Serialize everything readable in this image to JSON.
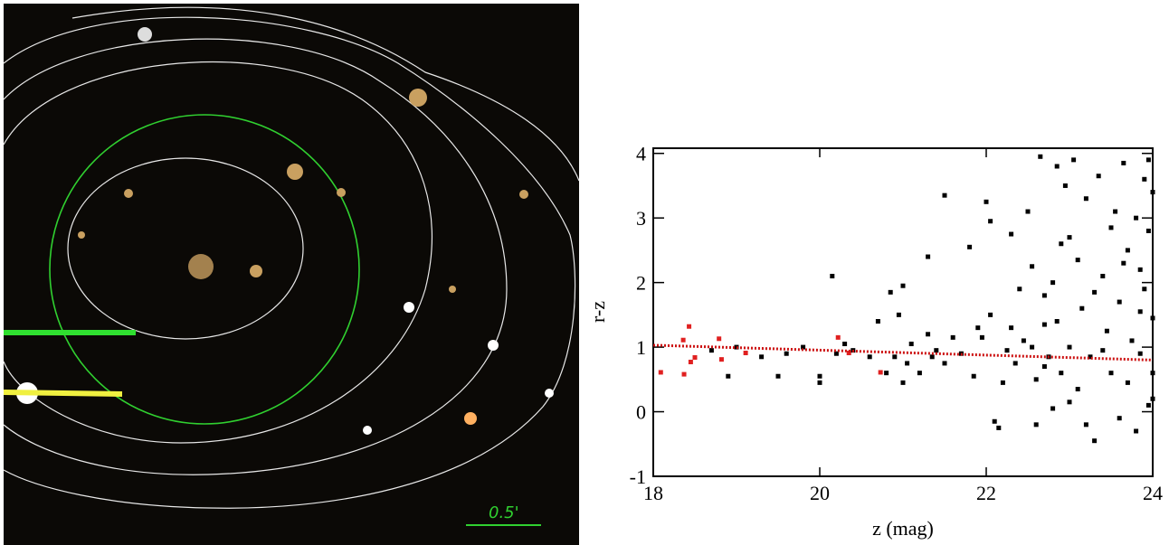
{
  "chart_data": [
    {
      "type": "image",
      "annotations": [
        "0.5'"
      ]
    },
    {
      "type": "scatter",
      "xlabel": "z (mag)",
      "ylabel": "r-z",
      "xlim": [
        18,
        24
      ],
      "ylim": [
        -1,
        4.08
      ],
      "xticks": [
        18,
        20,
        22,
        24
      ],
      "yticks": [
        -1,
        0,
        1,
        2,
        3,
        4
      ],
      "series": [
        {
          "type": "scatter",
          "color": "#000000",
          "x": [
            18.7,
            18.9,
            19.0,
            19.3,
            19.5,
            19.6,
            19.8,
            20.0,
            20.0,
            20.15,
            20.2,
            20.3,
            20.4,
            20.6,
            20.7,
            20.8,
            20.85,
            20.9,
            20.95,
            21.0,
            21.0,
            21.05,
            21.1,
            21.2,
            21.3,
            21.3,
            21.35,
            21.5,
            21.5,
            21.6,
            21.7,
            21.8,
            21.85,
            21.9,
            22.0,
            22.05,
            22.05,
            22.1,
            22.15,
            22.2,
            22.25,
            22.3,
            22.35,
            22.4,
            22.45,
            22.5,
            22.55,
            22.55,
            22.6,
            22.6,
            22.65,
            22.7,
            22.7,
            22.75,
            22.8,
            22.8,
            22.85,
            22.85,
            22.9,
            22.95,
            23.0,
            23.0,
            23.05,
            23.1,
            23.1,
            23.15,
            23.2,
            23.2,
            23.25,
            23.3,
            23.3,
            23.35,
            23.4,
            23.45,
            23.5,
            23.5,
            23.55,
            23.6,
            23.6,
            23.65,
            23.7,
            23.7,
            23.75,
            23.8,
            23.8,
            23.85,
            23.85,
            23.9,
            23.9,
            23.95,
            23.95,
            23.95,
            24.0,
            24.0,
            24.0,
            23.4,
            23.0,
            22.9,
            22.3,
            21.95,
            21.4,
            23.65,
            23.85,
            24.0,
            22.7
          ],
          "values": [
            0.95,
            0.55,
            1.0,
            0.85,
            0.55,
            0.9,
            1.0,
            0.55,
            0.45,
            2.1,
            0.9,
            1.05,
            0.95,
            0.85,
            1.4,
            0.6,
            1.85,
            0.85,
            1.5,
            1.95,
            0.45,
            0.75,
            1.05,
            0.6,
            2.4,
            1.2,
            0.85,
            3.35,
            0.75,
            1.15,
            0.9,
            2.55,
            0.55,
            1.3,
            3.25,
            2.95,
            1.5,
            -0.15,
            -0.25,
            0.45,
            0.95,
            1.3,
            0.75,
            1.9,
            1.1,
            3.1,
            2.25,
            1.0,
            0.5,
            -0.2,
            3.95,
            1.8,
            1.35,
            0.85,
            2.0,
            0.05,
            3.8,
            1.4,
            0.6,
            3.5,
            2.7,
            1.0,
            3.9,
            0.35,
            2.35,
            1.6,
            3.3,
            -0.2,
            0.85,
            -0.45,
            1.85,
            3.65,
            2.1,
            1.25,
            0.6,
            2.85,
            3.1,
            1.7,
            -0.1,
            3.85,
            0.45,
            2.5,
            1.1,
            3.0,
            -0.3,
            2.2,
            0.9,
            3.6,
            1.9,
            0.1,
            2.8,
            3.9,
            3.4,
            0.6,
            1.45,
            0.95,
            0.15,
            2.6,
            2.75,
            1.15,
            0.95,
            2.3,
            1.55,
            0.2,
            0.7
          ]
        },
        {
          "type": "scatter",
          "color": "#e02020",
          "x": [
            18.09,
            18.36,
            18.45,
            18.5,
            18.37,
            18.43,
            18.79,
            18.82,
            19.11,
            20.22,
            20.35,
            20.73
          ],
          "values": [
            0.61,
            1.11,
            0.77,
            0.84,
            0.58,
            1.32,
            1.13,
            0.81,
            0.91,
            1.15,
            0.91,
            0.61
          ]
        },
        {
          "type": "line",
          "color": "#cc1010",
          "x": [
            18,
            24
          ],
          "values": [
            1.03,
            0.8
          ]
        }
      ]
    }
  ]
}
